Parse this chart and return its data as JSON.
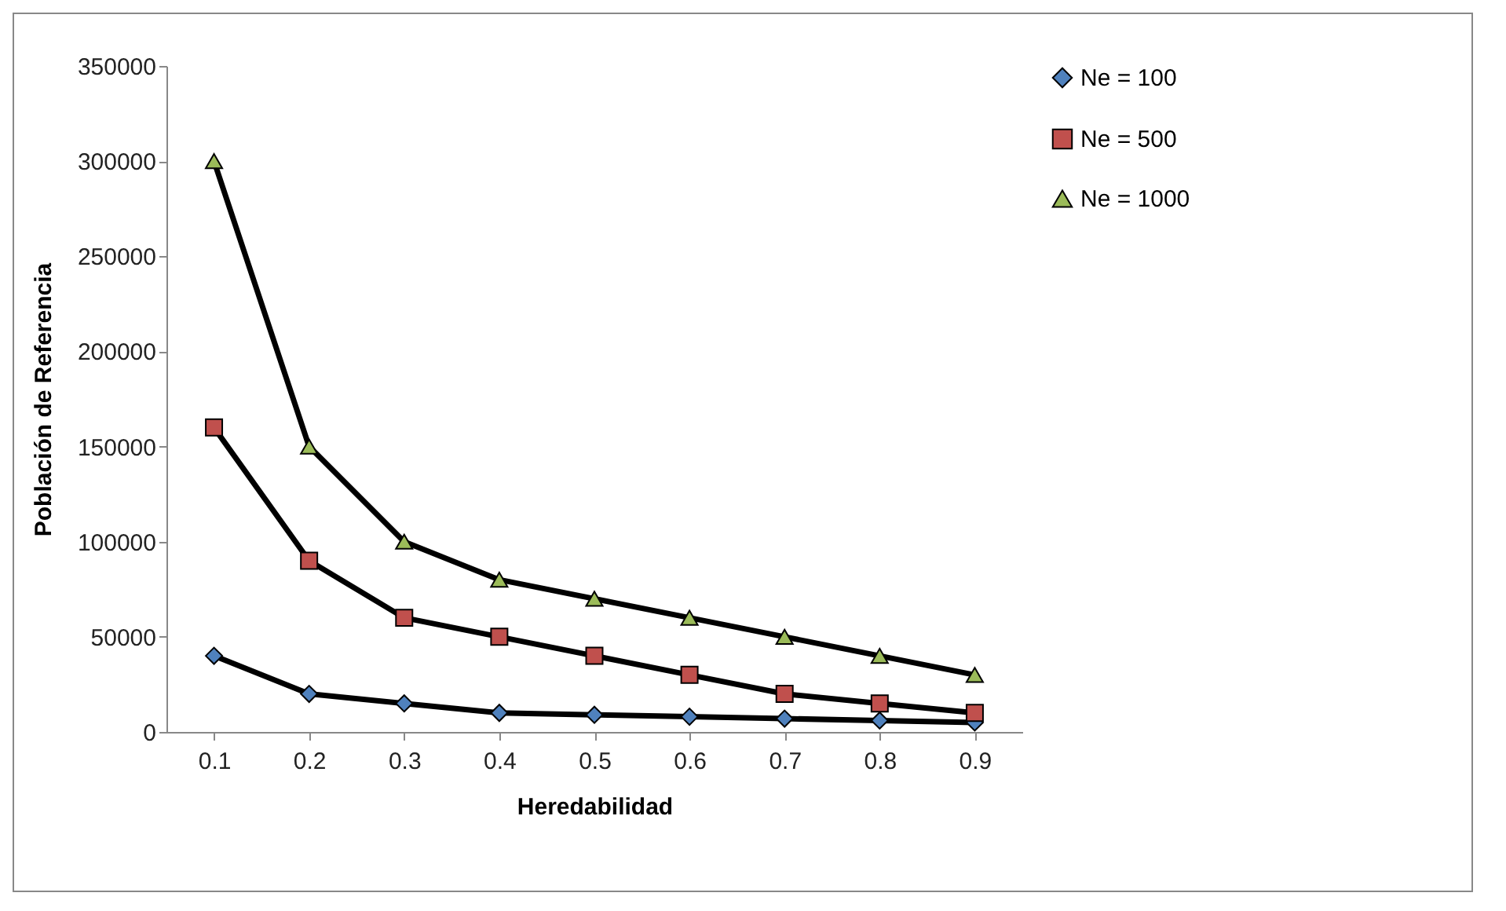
{
  "chart_data": {
    "type": "line",
    "xlabel": "Heredabilidad",
    "ylabel": "Población de Referencia",
    "categories": [
      "0.1",
      "0.2",
      "0.3",
      "0.4",
      "0.5",
      "0.6",
      "0.7",
      "0.8",
      "0.9"
    ],
    "series": [
      {
        "name": "Ne = 100",
        "color": "#4f81bd",
        "marker": "diamond",
        "values": [
          40000,
          20000,
          15000,
          10000,
          9000,
          8000,
          7000,
          6000,
          5000
        ]
      },
      {
        "name": "Ne = 500",
        "color": "#c0504d",
        "marker": "square",
        "values": [
          160000,
          90000,
          60000,
          50000,
          40000,
          30000,
          20000,
          15000,
          10000
        ]
      },
      {
        "name": "Ne = 1000",
        "color": "#9bbb59",
        "marker": "triangle",
        "values": [
          300000,
          150000,
          100000,
          80000,
          70000,
          60000,
          50000,
          40000,
          30000
        ]
      }
    ],
    "ylim": [
      0,
      350000
    ],
    "yticks": [
      0,
      50000,
      100000,
      150000,
      200000,
      250000,
      300000,
      350000
    ],
    "grid": false,
    "legend": "right",
    "line_style": "solid"
  }
}
